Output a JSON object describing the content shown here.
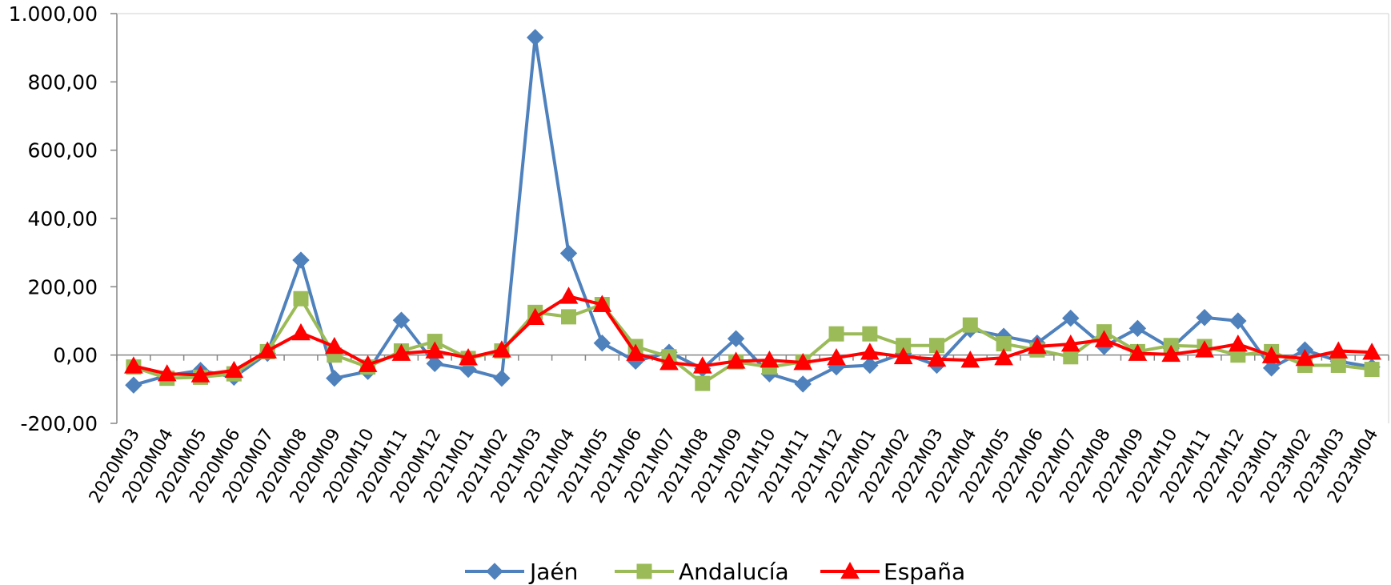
{
  "chart_data": {
    "type": "line",
    "title": "",
    "xlabel": "",
    "ylabel": "",
    "ylim": [
      -200,
      1000
    ],
    "y_ticks": [
      "-200,00",
      "0,00",
      "200,00",
      "400,00",
      "600,00",
      "800,00",
      "1.000,00"
    ],
    "y_tick_values": [
      -200,
      0,
      200,
      400,
      600,
      800,
      1000
    ],
    "grid": false,
    "legend_position": "bottom",
    "categories": [
      "2020M03",
      "2020M04",
      "2020M05",
      "2020M06",
      "2020M07",
      "2020M08",
      "2020M09",
      "2020M10",
      "2020M11",
      "2020M12",
      "2021M01",
      "2021M02",
      "2021M03",
      "2021M04",
      "2021M05",
      "2021M06",
      "2021M07",
      "2021M08",
      "2021M09",
      "2021M10",
      "2021M11",
      "2021M12",
      "2022M01",
      "2022M02",
      "2022M03",
      "2022M04",
      "2022M05",
      "2022M06",
      "2022M07",
      "2022M08",
      "2022M09",
      "2022M10",
      "2022M11",
      "2022M12",
      "2023M01",
      "2023M02",
      "2023M03",
      "2023M04"
    ],
    "series": [
      {
        "name": "Jaén",
        "color": "#4F81BD",
        "marker": "diamond",
        "values": [
          -88,
          -60,
          -45,
          -65,
          5,
          278,
          -68,
          -48,
          102,
          -25,
          -42,
          -68,
          930,
          298,
          35,
          -18,
          8,
          -40,
          48,
          -55,
          -85,
          -35,
          -30,
          5,
          -30,
          75,
          55,
          35,
          108,
          25,
          78,
          20,
          110,
          100,
          -38,
          15,
          -18,
          -35
        ]
      },
      {
        "name": "Andalucía",
        "color": "#9BBB59",
        "marker": "square",
        "values": [
          -35,
          -68,
          -65,
          -55,
          10,
          165,
          0,
          -35,
          12,
          40,
          -10,
          12,
          125,
          112,
          148,
          25,
          -5,
          -83,
          -20,
          -35,
          -20,
          62,
          62,
          28,
          28,
          88,
          33,
          15,
          -5,
          68,
          10,
          28,
          25,
          0,
          10,
          -30,
          -30,
          -42
        ]
      },
      {
        "name": "España",
        "color": "#FF0000",
        "marker": "triangle",
        "values": [
          -32,
          -55,
          -58,
          -45,
          12,
          65,
          25,
          -28,
          5,
          12,
          -8,
          15,
          110,
          172,
          148,
          5,
          -22,
          -32,
          -18,
          -15,
          -22,
          -8,
          8,
          -5,
          -12,
          -15,
          -8,
          25,
          32,
          45,
          5,
          2,
          15,
          32,
          -2,
          -10,
          12,
          8
        ]
      }
    ]
  }
}
